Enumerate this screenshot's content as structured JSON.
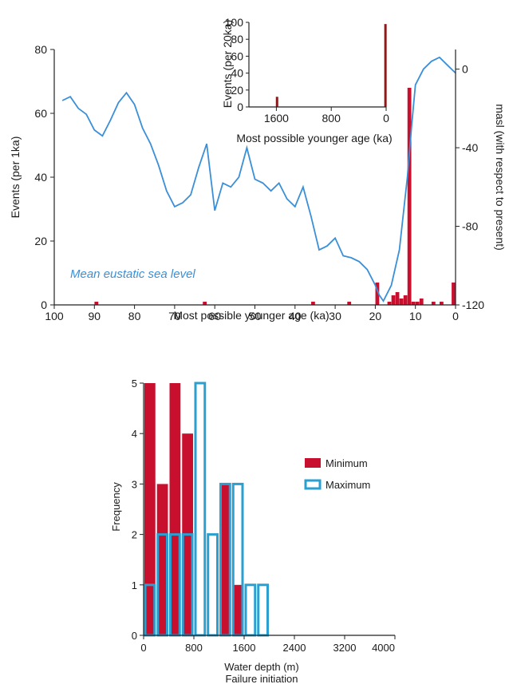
{
  "chart_data": [
    {
      "type": "bar",
      "xlabel": "Most possible younger age (ka)",
      "ylabel": "Events (per 1ka)",
      "y2label": "masl (with respect to present)",
      "xlim": [
        100,
        0
      ],
      "ylim": [
        0,
        80
      ],
      "y2lim": [
        -120,
        10
      ],
      "x_ticks": [
        100,
        90,
        80,
        70,
        60,
        50,
        40,
        30,
        20,
        10,
        0
      ],
      "y_ticks": [
        0,
        20,
        40,
        60,
        80
      ],
      "y2_ticks": [
        0,
        -40,
        -80,
        -120
      ],
      "bar_color": "#c8102e",
      "line_color": "#3a8fd8",
      "series": [
        {
          "type": "bar",
          "x": [
            89.5,
            62.5,
            35.5,
            26.5,
            19.5,
            16.5,
            15.5,
            14.5,
            13.5,
            12.5,
            11.5,
            10.5,
            9.5,
            8.5,
            5.5,
            3.5,
            0.5
          ],
          "values": [
            1,
            1,
            1,
            1,
            7,
            1,
            3,
            4,
            2,
            3,
            68,
            1,
            1,
            2,
            1,
            1,
            7
          ]
        },
        {
          "type": "line",
          "name": "Mean eustatic sea level",
          "x": [
            98,
            96,
            94,
            92,
            90,
            88,
            86,
            84,
            82,
            80,
            78,
            76,
            74,
            72,
            70,
            68,
            66,
            64,
            62,
            60,
            58,
            56,
            54,
            52,
            50,
            48,
            46,
            44,
            42,
            40,
            38,
            36,
            34,
            32,
            30,
            28,
            26,
            24,
            22,
            20,
            19,
            18,
            16,
            14,
            12,
            11,
            10,
            8,
            6,
            4,
            2,
            0
          ],
          "values": [
            -16,
            -14,
            -20,
            -23,
            -31,
            -34,
            -26,
            -17,
            -12,
            -18,
            -30,
            -38,
            -49,
            -62,
            -70,
            -68,
            -64,
            -50,
            -38,
            -72,
            -58,
            -60,
            -55,
            -40,
            -56,
            -58,
            -62,
            -58,
            -66,
            -70,
            -60,
            -75,
            -92,
            -90,
            -86,
            -95,
            -96,
            -98,
            -102,
            -110,
            -115,
            -118,
            -110,
            -92,
            -55,
            -30,
            -8,
            0,
            4,
            6,
            2,
            -2
          ]
        }
      ],
      "annotations": [
        "Mean eustatic sea level"
      ],
      "inset": {
        "type": "bar",
        "xlabel": "Most possible younger age (ka)",
        "ylabel": "Events (per 20ka)",
        "xlim": [
          2000,
          0
        ],
        "ylim": [
          0,
          100
        ],
        "x_ticks": [
          1600,
          800,
          0
        ],
        "y_ticks": [
          0,
          20,
          40,
          60,
          80,
          100
        ],
        "x": [
          1590,
          10
        ],
        "values": [
          12,
          98
        ]
      }
    },
    {
      "type": "bar",
      "xlabel": "Water depth  (m)",
      "xlabel2": "Failure initiation",
      "ylabel": "Frequency",
      "xlim": [
        0,
        4000
      ],
      "ylim": [
        0,
        5
      ],
      "x_ticks": [
        0,
        800,
        1600,
        2400,
        3200,
        4000
      ],
      "x_tick_labels": [
        "0",
        "800",
        "1600",
        "2400",
        "3200",
        "4000"
      ],
      "y_ticks": [
        0,
        1,
        2,
        3,
        4,
        5
      ],
      "bin_width": 200,
      "bins": [
        0,
        200,
        400,
        600,
        800,
        1000,
        1200,
        1400,
        1600,
        1800
      ],
      "series": [
        {
          "name": "Minimum",
          "color": "#c8102e",
          "values": [
            5,
            3,
            5,
            4,
            0,
            0,
            3,
            1,
            0,
            0
          ]
        },
        {
          "name": "Maximum",
          "color": "#2a9fd0",
          "values": [
            1,
            2,
            2,
            2,
            5,
            2,
            3,
            3,
            1,
            1
          ]
        }
      ],
      "legend": "right"
    }
  ]
}
